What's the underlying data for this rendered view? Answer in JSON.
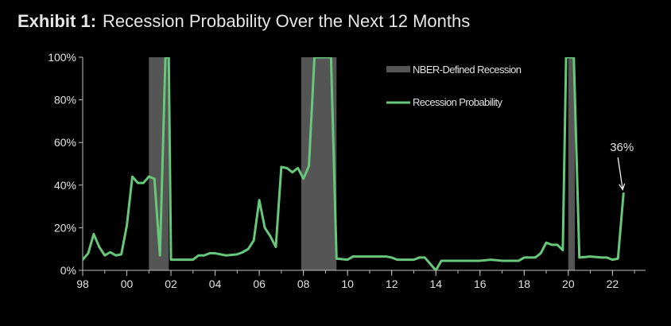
{
  "title": {
    "exhibit": "Exhibit 1",
    "text": "Recession Probability Over the Next 12 Months"
  },
  "chart_data": {
    "type": "line",
    "title": "Recession Probability Over the Next 12 Months",
    "xlabel": "",
    "ylabel": "",
    "xlim": [
      1998.0,
      2023.5
    ],
    "ylim": [
      0,
      100
    ],
    "y_ticks": [
      0,
      20,
      40,
      60,
      80,
      100
    ],
    "y_tick_labels": [
      "0%",
      "20%",
      "40%",
      "60%",
      "80%",
      "100%"
    ],
    "x_ticks": [
      1998,
      2000,
      2002,
      2004,
      2006,
      2008,
      2010,
      2012,
      2014,
      2016,
      2018,
      2020,
      2022
    ],
    "x_tick_labels": [
      "98",
      "00",
      "02",
      "04",
      "06",
      "08",
      "10",
      "12",
      "14",
      "16",
      "18",
      "20",
      "22"
    ],
    "grid": false,
    "legend_position": "top-right",
    "legend": [
      {
        "label": "NBER-Defined Recession",
        "kind": "band",
        "color": "#555555"
      },
      {
        "label": "Recession Probability",
        "kind": "line",
        "color": "#67c77a"
      }
    ],
    "recessions": [
      [
        2001.0,
        2001.9
      ],
      [
        2007.9,
        2009.5
      ],
      [
        2020.0,
        2020.3
      ]
    ],
    "series": [
      {
        "name": "Recession Probability",
        "color": "#67c77a",
        "points": [
          [
            1998.0,
            5
          ],
          [
            1998.25,
            8
          ],
          [
            1998.5,
            17
          ],
          [
            1998.75,
            11
          ],
          [
            1999.0,
            7
          ],
          [
            1999.25,
            8.5
          ],
          [
            1999.5,
            7
          ],
          [
            1999.75,
            7.5
          ],
          [
            2000.0,
            21
          ],
          [
            2000.25,
            44
          ],
          [
            2000.5,
            41
          ],
          [
            2000.75,
            41
          ],
          [
            2001.0,
            44
          ],
          [
            2001.25,
            43
          ],
          [
            2001.5,
            7
          ],
          [
            2001.75,
            100
          ],
          [
            2001.9,
            100
          ],
          [
            2002.0,
            5
          ],
          [
            2002.5,
            5
          ],
          [
            2003.0,
            5
          ],
          [
            2003.25,
            7
          ],
          [
            2003.5,
            7
          ],
          [
            2003.75,
            8
          ],
          [
            2004.0,
            8
          ],
          [
            2004.5,
            7
          ],
          [
            2005.0,
            7.5
          ],
          [
            2005.25,
            8.5
          ],
          [
            2005.5,
            10
          ],
          [
            2005.75,
            14
          ],
          [
            2006.0,
            33
          ],
          [
            2006.25,
            20
          ],
          [
            2006.5,
            16
          ],
          [
            2006.75,
            11
          ],
          [
            2007.0,
            48.5
          ],
          [
            2007.25,
            48
          ],
          [
            2007.5,
            46
          ],
          [
            2007.75,
            48
          ],
          [
            2008.0,
            43
          ],
          [
            2008.25,
            49
          ],
          [
            2008.5,
            100
          ],
          [
            2009.0,
            100
          ],
          [
            2009.25,
            100
          ],
          [
            2009.5,
            5.5
          ],
          [
            2010.0,
            5
          ],
          [
            2010.25,
            6.5
          ],
          [
            2010.5,
            6.5
          ],
          [
            2011.0,
            6.5
          ],
          [
            2011.5,
            6.5
          ],
          [
            2011.75,
            6.5
          ],
          [
            2012.0,
            6
          ],
          [
            2012.25,
            5
          ],
          [
            2013.0,
            5
          ],
          [
            2013.25,
            6
          ],
          [
            2013.5,
            6
          ],
          [
            2013.75,
            3
          ],
          [
            2014.0,
            0
          ],
          [
            2014.25,
            4.5
          ],
          [
            2015.0,
            4.5
          ],
          [
            2015.5,
            4.5
          ],
          [
            2016.0,
            4.5
          ],
          [
            2016.5,
            5
          ],
          [
            2017.0,
            4.5
          ],
          [
            2017.5,
            4.5
          ],
          [
            2017.75,
            4.5
          ],
          [
            2018.0,
            6
          ],
          [
            2018.5,
            6
          ],
          [
            2018.75,
            8
          ],
          [
            2019.0,
            13
          ],
          [
            2019.25,
            12
          ],
          [
            2019.5,
            12
          ],
          [
            2019.75,
            9.5
          ],
          [
            2019.9,
            100
          ],
          [
            2020.0,
            100
          ],
          [
            2020.25,
            100
          ],
          [
            2020.5,
            6
          ],
          [
            2021.0,
            6.5
          ],
          [
            2021.5,
            6
          ],
          [
            2021.75,
            6
          ],
          [
            2022.0,
            5
          ],
          [
            2022.25,
            5.5
          ],
          [
            2022.5,
            36
          ]
        ]
      }
    ],
    "annotations": [
      {
        "text": "36%",
        "x": 2022.5,
        "y": 36
      }
    ]
  }
}
